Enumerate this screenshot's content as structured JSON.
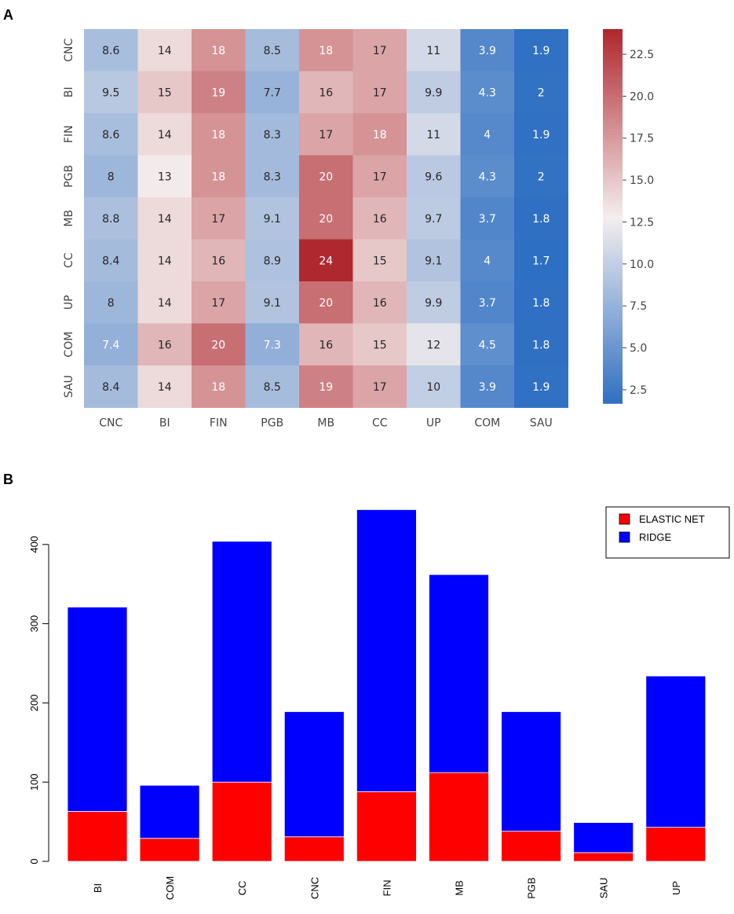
{
  "panels": {
    "a_label": "A",
    "b_label": "B"
  },
  "chart_data": [
    {
      "type": "heatmap",
      "panel": "A",
      "rows": [
        "CNC",
        "BI",
        "FIN",
        "PGB",
        "MB",
        "CC",
        "UP",
        "COM",
        "SAU"
      ],
      "columns": [
        "CNC",
        "BI",
        "FIN",
        "PGB",
        "MB",
        "CC",
        "UP",
        "COM",
        "SAU"
      ],
      "values": [
        [
          8.6,
          14,
          18,
          8.5,
          18,
          17,
          11,
          3.9,
          1.9
        ],
        [
          9.5,
          15,
          19,
          7.7,
          16,
          17,
          9.9,
          4.3,
          2
        ],
        [
          8.6,
          14,
          18,
          8.3,
          17,
          18,
          11,
          4,
          1.9
        ],
        [
          8,
          13,
          18,
          8.3,
          20,
          17,
          9.6,
          4.3,
          2
        ],
        [
          8.8,
          14,
          17,
          9.1,
          20,
          16,
          9.7,
          3.7,
          1.8
        ],
        [
          8.4,
          14,
          16,
          8.9,
          24,
          15,
          9.1,
          4,
          1.7
        ],
        [
          8,
          14,
          17,
          9.1,
          20,
          16,
          9.9,
          3.7,
          1.8
        ],
        [
          7.4,
          16,
          20,
          7.3,
          16,
          15,
          12,
          4.5,
          1.8
        ],
        [
          8.4,
          14,
          18,
          8.5,
          19,
          17,
          10,
          3.9,
          1.9
        ]
      ],
      "value_range": [
        1.7,
        24
      ],
      "colormap": {
        "low": "#2d6fc2",
        "mid": "#f4eeee",
        "high": "#b0282f"
      },
      "colorbar_ticks": [
        "2.5",
        "5.0",
        "7.5",
        "10.0",
        "12.5",
        "15.0",
        "17.5",
        "20.0",
        "22.5"
      ],
      "colorbar_tick_values": [
        2.5,
        5.0,
        7.5,
        10.0,
        12.5,
        15.0,
        17.5,
        20.0,
        22.5
      ]
    },
    {
      "type": "bar",
      "stacked": true,
      "panel": "B",
      "categories": [
        "BI",
        "COM",
        "CC",
        "CNC",
        "FIN",
        "MB",
        "PGB",
        "SAU",
        "UP"
      ],
      "series": [
        {
          "name": "ELASTIC NET",
          "color": "#ff0000",
          "values": [
            63,
            29,
            100,
            31,
            88,
            112,
            38,
            11,
            43
          ]
        },
        {
          "name": "RIDGE",
          "color": "#0000ff",
          "values": [
            258,
            67,
            304,
            158,
            356,
            250,
            151,
            38,
            191
          ]
        }
      ],
      "y_ticks": [
        0,
        100,
        200,
        300,
        400
      ],
      "ylim": [
        0,
        450
      ],
      "legend": [
        "ELASTIC NET",
        "RIDGE"
      ],
      "legend_position": "top-right",
      "xlabel": "",
      "ylabel": ""
    }
  ]
}
